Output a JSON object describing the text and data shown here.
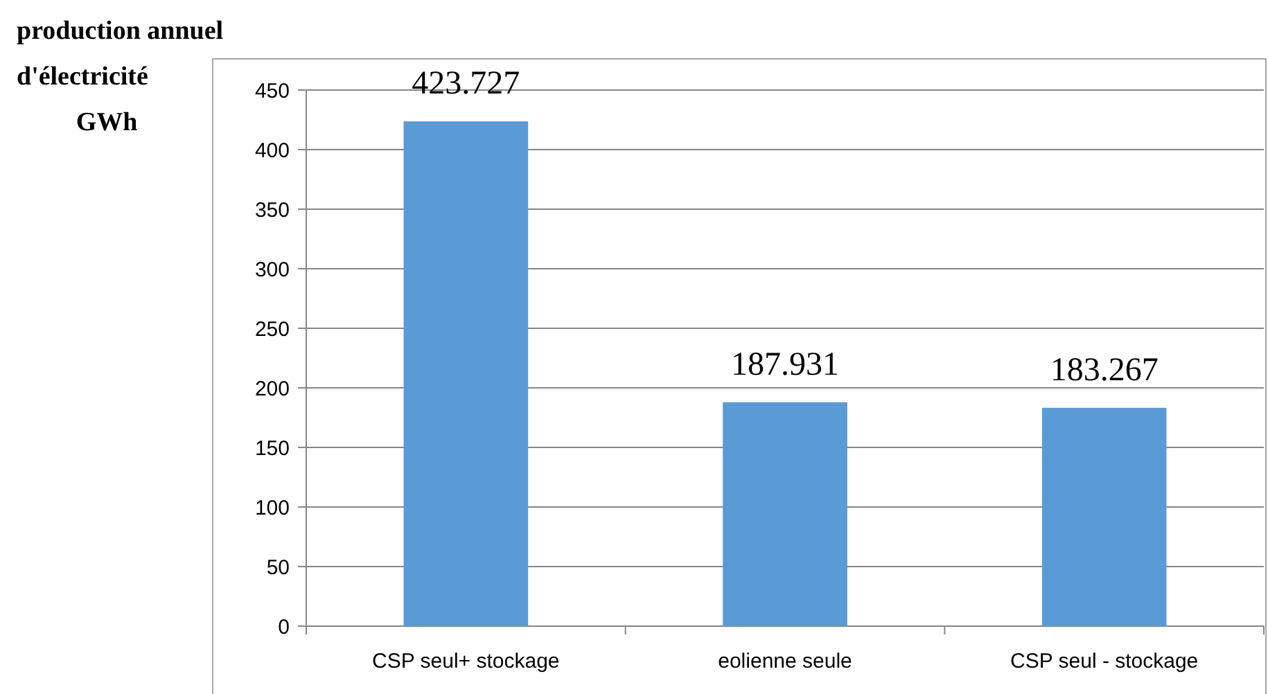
{
  "chart_data": {
    "type": "bar",
    "ylabel": "production annuel\nd'électricité\nGWh",
    "categories": [
      "CSP seul+ stockage",
      "eolienne seule",
      "CSP seul - stockage"
    ],
    "values": [
      423.727,
      187.931,
      183.267
    ],
    "color": "#5b9bd5",
    "ylim": [
      0,
      450
    ],
    "yticks": [
      0,
      50,
      100,
      150,
      200,
      250,
      300,
      350,
      400,
      450
    ],
    "grid": "y",
    "data_labels": true
  }
}
